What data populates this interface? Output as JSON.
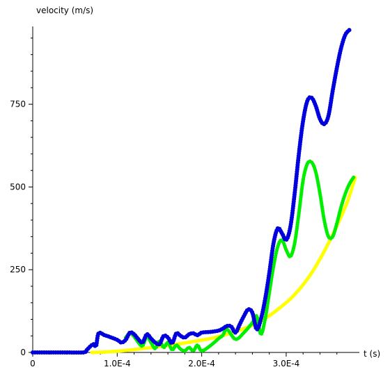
{
  "chart_data": {
    "type": "scatter",
    "xlabel": "t (s)",
    "ylabel": "velocity (m/s)",
    "xlim": [
      0,
      0.00038
    ],
    "ylim": [
      0,
      985
    ],
    "x_ticks": [
      {
        "value": 0,
        "label": "0"
      },
      {
        "value": 0.0001,
        "label": "1.0E-4"
      },
      {
        "value": 0.0002,
        "label": "2.0E-4"
      },
      {
        "value": 0.0003,
        "label": "3.0E-4"
      }
    ],
    "x_minor_ticks": [
      2e-05,
      4e-05,
      6e-05,
      8e-05,
      0.00012,
      0.00014,
      0.00016,
      0.00018,
      0.00022,
      0.00024,
      0.00026,
      0.00028,
      0.00032,
      0.00034,
      0.00036
    ],
    "y_ticks": [
      {
        "value": 0,
        "label": "0"
      },
      {
        "value": 250,
        "label": "250"
      },
      {
        "value": 500,
        "label": "500"
      },
      {
        "value": 750,
        "label": "750"
      }
    ],
    "y_minor_ticks": [
      50,
      100,
      150,
      200,
      300,
      350,
      400,
      450,
      550,
      600,
      650,
      700,
      800,
      850,
      900,
      950
    ],
    "grid": false,
    "legend": "none",
    "series": [
      {
        "color": "#ffff00",
        "marker_size": 2.6,
        "points": [
          [
            7e-05,
            0
          ],
          [
            9e-05,
            2
          ],
          [
            0.00011,
            6
          ],
          [
            0.00013,
            12
          ],
          [
            0.00015,
            18
          ],
          [
            0.00017,
            25
          ],
          [
            0.00019,
            33
          ],
          [
            0.00021,
            42
          ],
          [
            0.00023,
            55
          ],
          [
            0.00025,
            72
          ],
          [
            0.00027,
            95
          ],
          [
            0.00029,
            130
          ],
          [
            0.00031,
            175
          ],
          [
            0.00033,
            240
          ],
          [
            0.00035,
            330
          ],
          [
            0.00037,
            440
          ],
          [
            0.000382,
            530
          ]
        ]
      },
      {
        "color": "#00ee00",
        "marker_size": 2.6,
        "points": [
          [
            0.00011,
            45
          ],
          [
            0.000115,
            58
          ],
          [
            0.00012,
            48
          ],
          [
            0.000125,
            30
          ],
          [
            0.00013,
            20
          ],
          [
            0.000135,
            48
          ],
          [
            0.00014,
            30
          ],
          [
            0.000145,
            12
          ],
          [
            0.00015,
            35
          ],
          [
            0.000155,
            15
          ],
          [
            0.00016,
            30
          ],
          [
            0.000165,
            8
          ],
          [
            0.00017,
            22
          ],
          [
            0.000175,
            10
          ],
          [
            0.00018,
            5
          ],
          [
            0.000185,
            15
          ],
          [
            0.00019,
            5
          ],
          [
            0.000195,
            22
          ],
          [
            0.0002,
            5
          ],
          [
            0.00021,
            20
          ],
          [
            0.00022,
            42
          ],
          [
            0.000225,
            52
          ],
          [
            0.00023,
            70
          ],
          [
            0.00024,
            40
          ],
          [
            0.00025,
            60
          ],
          [
            0.00026,
            90
          ],
          [
            0.000265,
            110
          ],
          [
            0.00027,
            55
          ],
          [
            0.000275,
            100
          ],
          [
            0.00028,
            180
          ],
          [
            0.000285,
            260
          ],
          [
            0.00029,
            320
          ],
          [
            0.000295,
            340
          ],
          [
            0.0003,
            310
          ],
          [
            0.000305,
            290
          ],
          [
            0.00031,
            330
          ],
          [
            0.000315,
            420
          ],
          [
            0.00032,
            520
          ],
          [
            0.000325,
            570
          ],
          [
            0.00033,
            575
          ],
          [
            0.000335,
            545
          ],
          [
            0.00034,
            480
          ],
          [
            0.000345,
            400
          ],
          [
            0.00035,
            350
          ],
          [
            0.000355,
            350
          ],
          [
            0.00036,
            390
          ],
          [
            0.000365,
            440
          ],
          [
            0.00037,
            480
          ],
          [
            0.000375,
            510
          ],
          [
            0.00038,
            530
          ]
        ]
      },
      {
        "color": "#0000dd",
        "marker_size": 3.0,
        "points": [
          [
            0,
            0
          ],
          [
            2e-05,
            0
          ],
          [
            4e-05,
            0
          ],
          [
            6e-05,
            0
          ],
          [
            6.3e-05,
            5
          ],
          [
            6.8e-05,
            18
          ],
          [
            7.2e-05,
            25
          ],
          [
            7.5e-05,
            20
          ],
          [
            7.8e-05,
            58
          ],
          [
            8.5e-05,
            52
          ],
          [
            9e-05,
            48
          ],
          [
            0.0001,
            38
          ],
          [
            0.000105,
            30
          ],
          [
            0.00011,
            38
          ],
          [
            0.000115,
            60
          ],
          [
            0.00012,
            55
          ],
          [
            0.000125,
            40
          ],
          [
            0.00013,
            30
          ],
          [
            0.000135,
            55
          ],
          [
            0.00014,
            42
          ],
          [
            0.000145,
            30
          ],
          [
            0.00015,
            25
          ],
          [
            0.000155,
            50
          ],
          [
            0.00016,
            45
          ],
          [
            0.000165,
            28
          ],
          [
            0.00017,
            58
          ],
          [
            0.000175,
            50
          ],
          [
            0.00018,
            45
          ],
          [
            0.000185,
            55
          ],
          [
            0.00019,
            58
          ],
          [
            0.000195,
            52
          ],
          [
            0.0002,
            60
          ],
          [
            0.00021,
            62
          ],
          [
            0.00022,
            66
          ],
          [
            0.000225,
            72
          ],
          [
            0.00023,
            80
          ],
          [
            0.000235,
            78
          ],
          [
            0.00024,
            60
          ],
          [
            0.000245,
            85
          ],
          [
            0.00025,
            110
          ],
          [
            0.000255,
            130
          ],
          [
            0.00026,
            120
          ],
          [
            0.000265,
            70
          ],
          [
            0.00027,
            100
          ],
          [
            0.000275,
            160
          ],
          [
            0.00028,
            240
          ],
          [
            0.000285,
            330
          ],
          [
            0.00029,
            375
          ],
          [
            0.000295,
            360
          ],
          [
            0.0003,
            340
          ],
          [
            0.000305,
            380
          ],
          [
            0.00031,
            480
          ],
          [
            0.000315,
            600
          ],
          [
            0.00032,
            700
          ],
          [
            0.000325,
            760
          ],
          [
            0.00033,
            770
          ],
          [
            0.000335,
            745
          ],
          [
            0.00034,
            705
          ],
          [
            0.000345,
            690
          ],
          [
            0.00035,
            715
          ],
          [
            0.000355,
            790
          ],
          [
            0.00036,
            860
          ],
          [
            0.000365,
            920
          ],
          [
            0.00037,
            960
          ],
          [
            0.000375,
            975
          ]
        ]
      }
    ]
  }
}
